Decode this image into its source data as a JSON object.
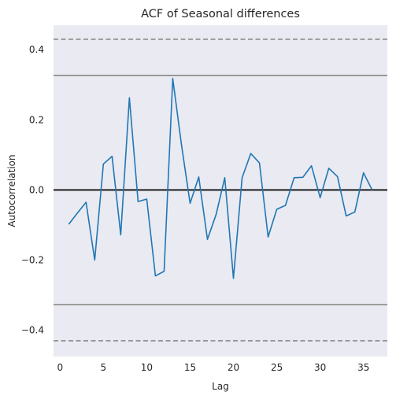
{
  "chart_data": {
    "type": "line",
    "title": "ACF of Seasonal differences",
    "xlabel": "Lag",
    "ylabel": "Autocorrelation",
    "xlim": [
      -0.75,
      37.75
    ],
    "ylim": [
      -0.475,
      0.47
    ],
    "xticks": [
      0,
      5,
      10,
      15,
      20,
      25,
      30,
      35
    ],
    "xtick_labels": [
      "0",
      "5",
      "10",
      "15",
      "20",
      "25",
      "30",
      "35"
    ],
    "yticks": [
      0.4,
      0.2,
      0.0,
      -0.2,
      -0.4
    ],
    "ytick_labels": [
      "0.4",
      "0.2",
      "0.0",
      "−0.2",
      "−0.4"
    ],
    "grid": false,
    "background": "#eaeaf2",
    "series": [
      {
        "color": "#1f77b4",
        "x": [
          1,
          2,
          3,
          4,
          5,
          6,
          7,
          8,
          9,
          10,
          11,
          12,
          13,
          14,
          15,
          16,
          17,
          18,
          19,
          20,
          21,
          22,
          23,
          24,
          25,
          26,
          27,
          28,
          29,
          30,
          31,
          32,
          33,
          34,
          35,
          36
        ],
        "values": [
          -0.098,
          -0.066,
          -0.035,
          -0.2,
          0.074,
          0.096,
          -0.128,
          0.263,
          -0.033,
          -0.026,
          -0.245,
          -0.232,
          0.318,
          0.13,
          -0.038,
          0.037,
          -0.141,
          -0.07,
          0.035,
          -0.252,
          0.035,
          0.104,
          0.077,
          -0.134,
          -0.055,
          -0.044,
          0.035,
          0.036,
          0.069,
          -0.022,
          0.062,
          0.038,
          -0.074,
          -0.063,
          0.049,
          0.0
        ]
      }
    ],
    "reference_lines": [
      {
        "y": 0.0,
        "style": "solid",
        "color": "#000000"
      },
      {
        "y": 0.327,
        "style": "solid",
        "color": "#808080"
      },
      {
        "y": -0.327,
        "style": "solid",
        "color": "#808080"
      },
      {
        "y": 0.43,
        "style": "dashed",
        "color": "#808080"
      },
      {
        "y": -0.43,
        "style": "dashed",
        "color": "#808080"
      }
    ]
  }
}
